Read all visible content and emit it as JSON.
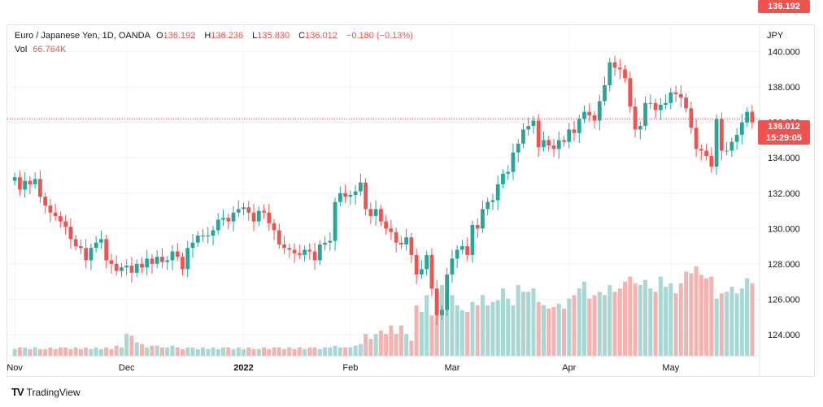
{
  "legend": {
    "symbol": "Euro / Japanese Yen, 1D, OANDA",
    "o_label": "O",
    "o_value": "136.192",
    "h_label": "H",
    "h_value": "136.236",
    "l_label": "L",
    "l_value": "135.830",
    "c_label": "C",
    "c_value": "136.012",
    "change": "−0.180 (−0.13%)",
    "vol_label": "Vol",
    "vol_value": "66.764K"
  },
  "currency": "JPY",
  "price_tags": {
    "open": "136.192",
    "close": "136.012",
    "countdown": "15:29:05"
  },
  "brand": {
    "name": "TradingView",
    "logo": "TV"
  },
  "colors": {
    "up": "#26a69a",
    "down": "#ef5350",
    "up_vol": "#a7d8d3",
    "down_vol": "#f2b3b1"
  },
  "chart_data": {
    "type": "candlestick",
    "title": "Euro / Japanese Yen, 1D, OANDA",
    "ylabel": "JPY",
    "ylim": [
      122.8,
      141.5
    ],
    "y_ticks": [
      "124.000",
      "126.000",
      "128.000",
      "130.000",
      "132.000",
      "134.000",
      "136.000",
      "138.000",
      "140.000"
    ],
    "x_ticks": [
      {
        "label": "Nov",
        "index": 0
      },
      {
        "label": "Dec",
        "index": 22
      },
      {
        "label": "2022",
        "index": 45
      },
      {
        "label": "Feb",
        "index": 66
      },
      {
        "label": "Mar",
        "index": 86
      },
      {
        "label": "Apr",
        "index": 109
      },
      {
        "label": "May",
        "index": 129
      }
    ],
    "current_price": 136.192,
    "close_series": [
      132.9,
      132.2,
      132.7,
      132.5,
      132.8,
      131.8,
      131.3,
      130.9,
      130.7,
      130.4,
      130.1,
      129.4,
      129.0,
      128.9,
      128.2,
      128.9,
      129.2,
      129.4,
      128.2,
      128.0,
      127.6,
      127.8,
      127.9,
      127.5,
      128.0,
      127.8,
      128.3,
      128.0,
      128.4,
      128.1,
      128.2,
      128.7,
      128.4,
      127.7,
      128.9,
      129.2,
      129.6,
      129.6,
      129.6,
      129.9,
      130.5,
      130.6,
      130.4,
      130.9,
      131.1,
      131.2,
      130.9,
      130.4,
      131.0,
      130.9,
      130.3,
      129.9,
      129.1,
      128.9,
      128.8,
      128.6,
      128.5,
      128.8,
      128.7,
      128.2,
      129.1,
      129.2,
      129.3,
      131.5,
      132.0,
      131.8,
      131.9,
      132.1,
      132.6,
      131.1,
      130.7,
      131.1,
      130.4,
      130.0,
      129.8,
      129.2,
      129.1,
      129.5,
      128.5,
      127.4,
      127.7,
      128.5,
      126.6,
      125.1,
      125.4,
      127.4,
      128.3,
      128.8,
      129.0,
      128.5,
      130.2,
      130.0,
      131.1,
      131.5,
      131.6,
      132.5,
      133.1,
      133.2,
      134.3,
      134.8,
      135.6,
      135.8,
      136.1,
      134.6,
      135.0,
      134.7,
      134.5,
      135.0,
      134.9,
      135.6,
      135.4,
      136.2,
      136.6,
      136.4,
      136.1,
      137.2,
      138.1,
      139.4,
      139.1,
      139.0,
      138.5,
      136.9,
      135.6,
      135.8,
      137.1,
      137.1,
      136.7,
      137.0,
      137.1,
      137.7,
      137.6,
      137.4,
      136.8,
      135.7,
      134.5,
      134.4,
      134.1,
      133.5,
      136.2,
      134.4,
      134.4,
      134.9,
      135.3,
      136.0,
      136.6,
      136.0
    ],
    "volume_series": [
      0.04,
      0.05,
      0.05,
      0.04,
      0.05,
      0.04,
      0.04,
      0.05,
      0.04,
      0.05,
      0.05,
      0.04,
      0.05,
      0.04,
      0.05,
      0.04,
      0.05,
      0.04,
      0.05,
      0.04,
      0.06,
      0.05,
      0.13,
      0.12,
      0.08,
      0.07,
      0.05,
      0.06,
      0.06,
      0.05,
      0.05,
      0.06,
      0.05,
      0.04,
      0.05,
      0.05,
      0.04,
      0.05,
      0.04,
      0.05,
      0.04,
      0.05,
      0.05,
      0.04,
      0.05,
      0.04,
      0.05,
      0.04,
      0.04,
      0.05,
      0.04,
      0.05,
      0.05,
      0.04,
      0.05,
      0.04,
      0.05,
      0.04,
      0.05,
      0.05,
      0.04,
      0.05,
      0.05,
      0.06,
      0.05,
      0.05,
      0.05,
      0.06,
      0.07,
      0.13,
      0.1,
      0.13,
      0.15,
      0.13,
      0.18,
      0.13,
      0.18,
      0.13,
      0.09,
      0.3,
      0.26,
      0.36,
      0.24,
      0.4,
      0.42,
      0.38,
      0.36,
      0.3,
      0.27,
      0.26,
      0.32,
      0.3,
      0.36,
      0.3,
      0.32,
      0.33,
      0.4,
      0.34,
      0.3,
      0.42,
      0.38,
      0.38,
      0.4,
      0.32,
      0.3,
      0.28,
      0.29,
      0.31,
      0.28,
      0.34,
      0.36,
      0.4,
      0.44,
      0.34,
      0.36,
      0.38,
      0.36,
      0.42,
      0.38,
      0.4,
      0.44,
      0.47,
      0.43,
      0.42,
      0.45,
      0.4,
      0.38,
      0.47,
      0.41,
      0.43,
      0.37,
      0.43,
      0.5,
      0.49,
      0.53,
      0.48,
      0.46,
      0.47,
      0.34,
      0.37,
      0.38,
      0.41,
      0.37,
      0.4,
      0.46,
      0.43
    ]
  }
}
